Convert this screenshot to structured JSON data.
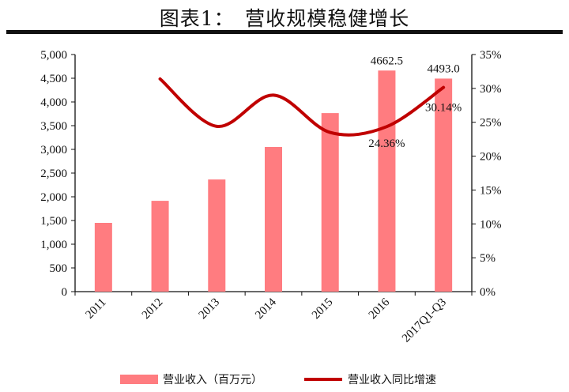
{
  "title": "图表1：　营收规模稳健增长",
  "chart_data": {
    "type": "bar+line",
    "categories": [
      "2011",
      "2012",
      "2013",
      "2014",
      "2015",
      "2016",
      "2017Q1-Q3"
    ],
    "series": [
      {
        "name": "营业收入（百万元）",
        "type": "bar",
        "axis": "left",
        "color": "#ff7c80",
        "values": [
          1450,
          1915,
          2365,
          3050,
          3765,
          4662.5,
          4493.0
        ]
      },
      {
        "name": "营业收入同比增速",
        "type": "line",
        "axis": "right",
        "color": "#c00000",
        "values": [
          null,
          31.4,
          24.4,
          29.0,
          23.5,
          24.36,
          30.14
        ]
      }
    ],
    "data_labels": [
      {
        "series": 0,
        "index": 5,
        "text": "4662.5"
      },
      {
        "series": 0,
        "index": 6,
        "text": "4493.0"
      },
      {
        "series": 1,
        "index": 5,
        "text": "24.36%"
      },
      {
        "series": 1,
        "index": 6,
        "text": "30.14%"
      }
    ],
    "ylim_left": [
      0,
      5000
    ],
    "yticks_left": [
      "0",
      "500",
      "1,000",
      "1,500",
      "2,000",
      "2,500",
      "3,000",
      "3,500",
      "4,000",
      "4,500",
      "5,000"
    ],
    "ylim_right": [
      0,
      35
    ],
    "yticks_right": [
      "0%",
      "5%",
      "10%",
      "15%",
      "20%",
      "25%",
      "30%",
      "35%"
    ],
    "grid": false,
    "legend": "bottom"
  }
}
